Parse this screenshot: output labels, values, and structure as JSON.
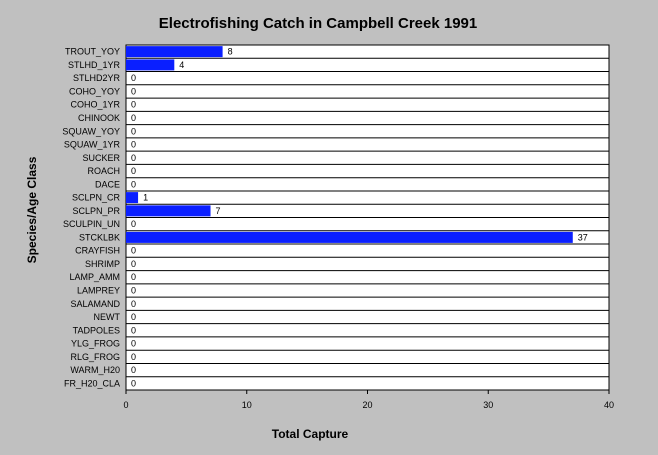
{
  "chart_data": {
    "type": "bar",
    "orientation": "horizontal",
    "title": "Electrofishing Catch in Campbell Creek 1991",
    "xlabel": "Total Capture",
    "ylabel": "Species/Age Class",
    "categories": [
      "TROUT_YOY",
      "STLHD_1YR",
      "STLHD2YR",
      "COHO_YOY",
      "COHO_1YR",
      "CHINOOK",
      "SQUAW_YOY",
      "SQUAW_1YR",
      "SUCKER",
      "ROACH",
      "DACE",
      "SCLPN_CR",
      "SCLPN_PR",
      "SCULPIN_UN",
      "STCKLBK",
      "CRAYFISH",
      "SHRIMP",
      "LAMP_AMM",
      "LAMPREY",
      "SALAMAND",
      "NEWT",
      "TADPOLES",
      "YLG_FROG",
      "RLG_FROG",
      "WARM_H20",
      "FR_H20_CLA"
    ],
    "values": [
      8,
      4,
      0,
      0,
      0,
      0,
      0,
      0,
      0,
      0,
      0,
      1,
      7,
      0,
      37,
      0,
      0,
      0,
      0,
      0,
      0,
      0,
      0,
      0,
      0,
      0
    ],
    "value_labels": [
      "8",
      "4",
      "0",
      "0",
      "0",
      "0",
      "0",
      "0",
      "0",
      "0",
      "0",
      "1",
      "7",
      "0",
      "37",
      "0",
      "0",
      "0",
      "0",
      "0",
      "0",
      "0",
      "0",
      "0",
      "0",
      "0"
    ],
    "xlim": [
      0,
      40
    ],
    "xticks": [
      0,
      10,
      20,
      30,
      40
    ],
    "xtick_labels": [
      "0",
      "10",
      "20",
      "30",
      "40"
    ],
    "grid": "horizontal",
    "legend": "none",
    "colors": {
      "background": "#c0c0c0",
      "plot_background": "#ffffff",
      "bar": "#0a1fff",
      "text": "#000000"
    }
  }
}
